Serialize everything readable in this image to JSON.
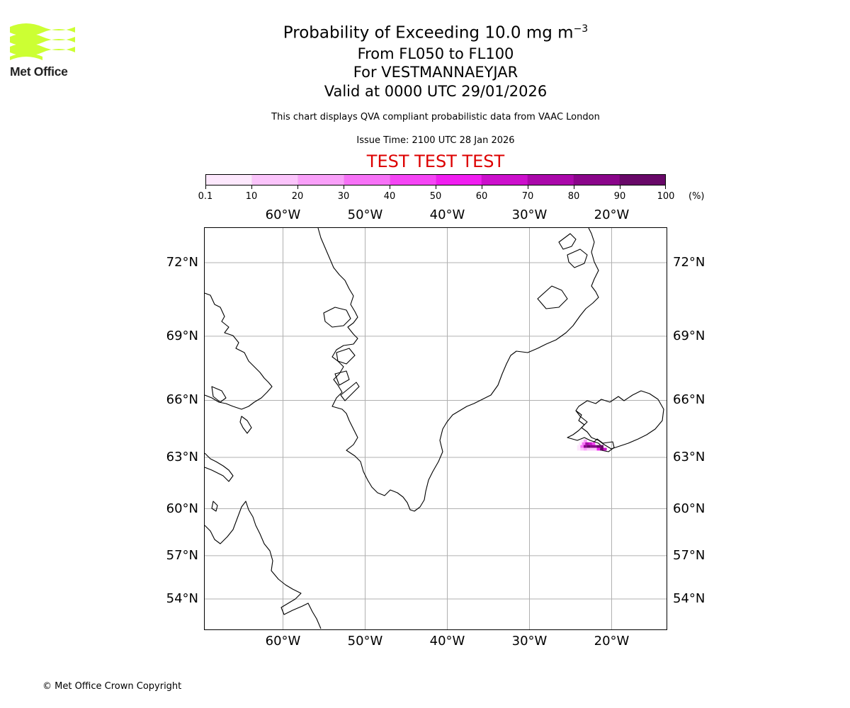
{
  "logo": {
    "text": "Met Office",
    "color": "#ccff33"
  },
  "header": {
    "title_main": "Probability of Exceeding 10.0 mg m",
    "title_exp": "−3",
    "level_range": "From FL050 to FL100",
    "location": "For VESTMANNAEYJAR",
    "valid_time": "Valid at 0000 UTC 29/01/2026",
    "description": "This chart displays QVA compliant probabilistic data from VAAC London",
    "issue_time": "Issue Time: 2100 UTC 28 Jan 2026",
    "test_banner": "TEST TEST TEST"
  },
  "colorbar": {
    "labels": [
      "0.1",
      "10",
      "20",
      "30",
      "40",
      "50",
      "60",
      "70",
      "80",
      "90",
      "100"
    ],
    "unit": "(%)",
    "colors": [
      "#fde8fd",
      "#fbc4fb",
      "#f9a0f9",
      "#f772f7",
      "#f545f5",
      "#f01ef0",
      "#cc10cc",
      "#aa08aa",
      "#8a058a",
      "#680868"
    ]
  },
  "map": {
    "lon_labels": [
      "60°W",
      "50°W",
      "40°W",
      "30°W",
      "20°W"
    ],
    "lat_labels": [
      "72°N",
      "69°N",
      "66°N",
      "63°N",
      "60°N",
      "57°N",
      "54°N"
    ],
    "plume_cells": [
      {
        "lat": 63.9,
        "lon": -23.6,
        "prob": 5
      },
      {
        "lat": 63.9,
        "lon": -23.2,
        "prob": 25
      },
      {
        "lat": 63.75,
        "lon": -23.8,
        "prob": 5
      },
      {
        "lat": 63.75,
        "lon": -23.4,
        "prob": 35
      },
      {
        "lat": 63.75,
        "lon": -23.0,
        "prob": 75
      },
      {
        "lat": 63.75,
        "lon": -22.6,
        "prob": 65
      },
      {
        "lat": 63.75,
        "lon": -22.2,
        "prob": 45
      },
      {
        "lat": 63.6,
        "lon": -24.0,
        "prob": 5
      },
      {
        "lat": 63.6,
        "lon": -23.6,
        "prob": 35
      },
      {
        "lat": 63.6,
        "lon": -23.2,
        "prob": 85
      },
      {
        "lat": 63.6,
        "lon": -22.8,
        "prob": 95
      },
      {
        "lat": 63.6,
        "lon": -22.4,
        "prob": 85
      },
      {
        "lat": 63.6,
        "lon": -22.0,
        "prob": 85
      },
      {
        "lat": 63.6,
        "lon": -21.6,
        "prob": 95
      },
      {
        "lat": 63.6,
        "lon": -21.2,
        "prob": 95
      },
      {
        "lat": 63.45,
        "lon": -24.0,
        "prob": 5
      },
      {
        "lat": 63.45,
        "lon": -23.6,
        "prob": 15
      },
      {
        "lat": 63.45,
        "lon": -23.2,
        "prob": 25
      },
      {
        "lat": 63.45,
        "lon": -22.8,
        "prob": 15
      },
      {
        "lat": 63.45,
        "lon": -22.4,
        "prob": 15
      },
      {
        "lat": 63.45,
        "lon": -22.0,
        "prob": 15
      },
      {
        "lat": 63.45,
        "lon": -21.6,
        "prob": 55
      },
      {
        "lat": 63.45,
        "lon": -21.2,
        "prob": 95
      },
      {
        "lat": 63.45,
        "lon": -20.8,
        "prob": 65
      }
    ]
  },
  "footer": {
    "copyright": "© Met Office Crown Copyright"
  }
}
